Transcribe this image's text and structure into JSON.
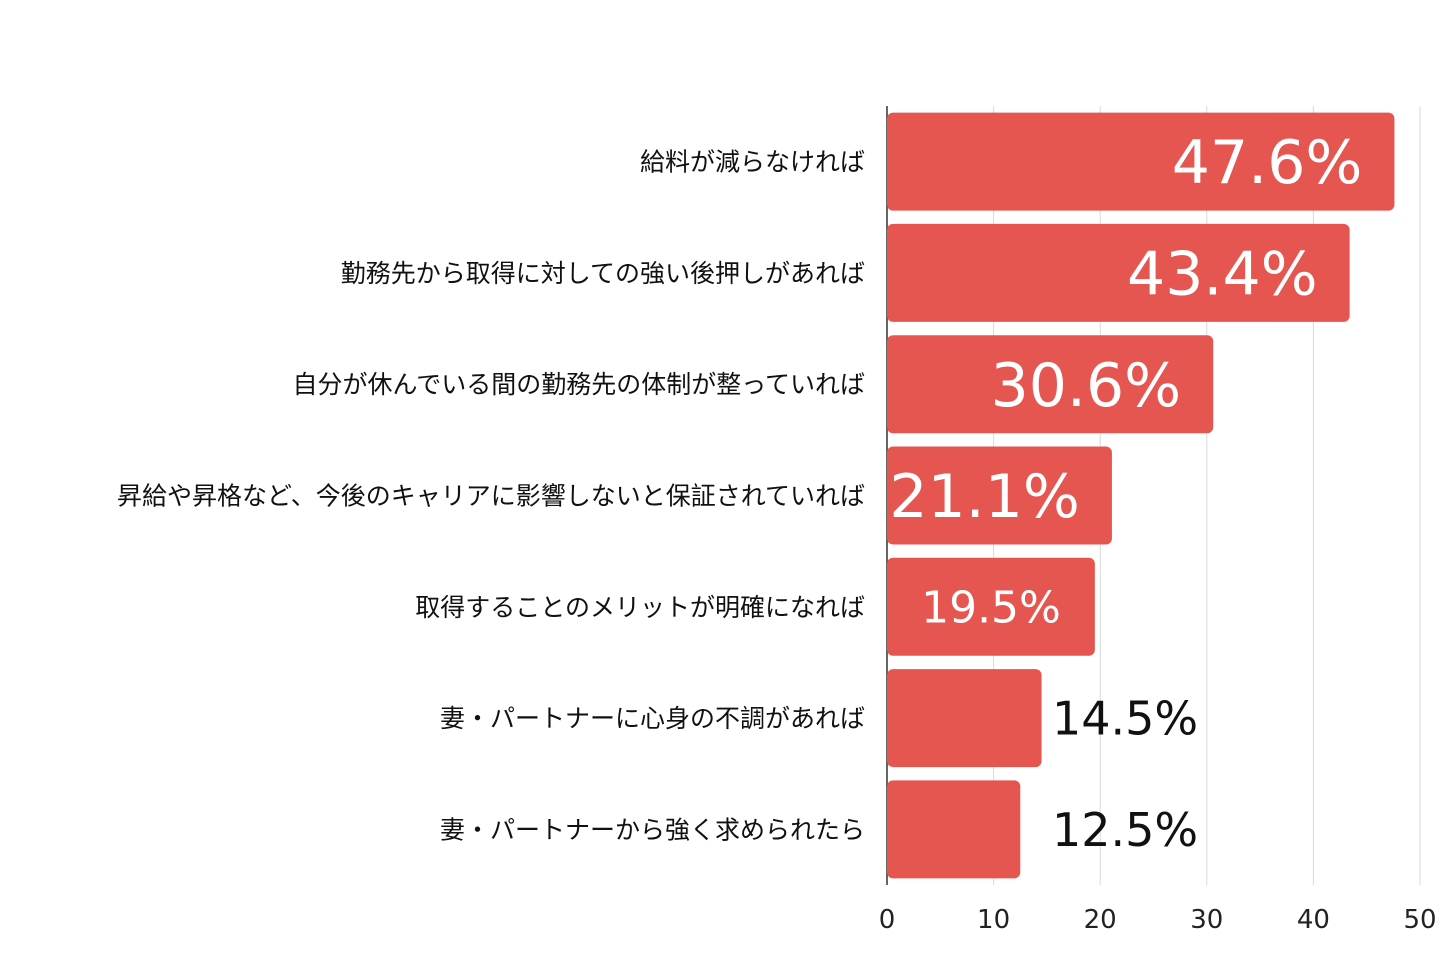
{
  "chart_data": {
    "type": "bar",
    "orientation": "horizontal",
    "categories": [
      "給料が減らなければ",
      "勤務先から取得に対しての強い後押しがあれば",
      "自分が休んでいる間の勤務先の体制が整っていれば",
      "昇給や昇格など、今後のキャリアに影響しないと保証されていれば",
      "取得することのメリットが明確になれば",
      "妻・パートナーに心身の不調があれば",
      "妻・パートナーから強く求められたら"
    ],
    "values": [
      47.6,
      43.4,
      30.6,
      21.1,
      19.5,
      14.5,
      12.5
    ],
    "data_labels": [
      "47.6%",
      "43.4%",
      "30.6%",
      "21.1%",
      "19.5%",
      "14.5%",
      "12.5%"
    ],
    "xlim": [
      0,
      50
    ],
    "xticks": [
      "0",
      "10",
      "20",
      "30",
      "40",
      "50"
    ],
    "grid": true,
    "bar_color": "#e55651",
    "grid_color": "#d9d9d9",
    "axis_color": "#333333"
  }
}
